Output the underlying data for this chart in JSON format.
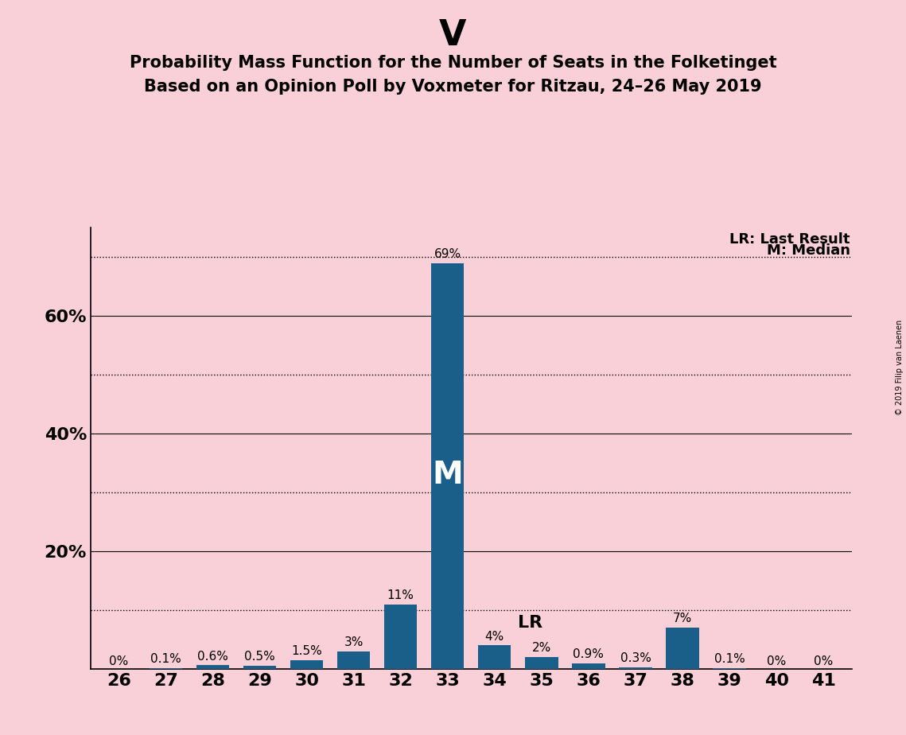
{
  "title": "V",
  "subtitle1": "Probability Mass Function for the Number of Seats in the Folketinget",
  "subtitle2": "Based on an Opinion Poll by Voxmeter for Ritzau, 24–26 May 2019",
  "copyright": "© 2019 Filip van Laenen",
  "categories": [
    26,
    27,
    28,
    29,
    30,
    31,
    32,
    33,
    34,
    35,
    36,
    37,
    38,
    39,
    40,
    41
  ],
  "values": [
    0.0,
    0.1,
    0.6,
    0.5,
    1.5,
    3.0,
    11.0,
    69.0,
    4.0,
    2.0,
    0.9,
    0.3,
    7.0,
    0.1,
    0.0,
    0.0
  ],
  "labels": [
    "0%",
    "0.1%",
    "0.6%",
    "0.5%",
    "1.5%",
    "3%",
    "11%",
    "69%",
    "4%",
    "2%",
    "0.9%",
    "0.3%",
    "7%",
    "0.1%",
    "0%",
    "0%"
  ],
  "bar_color": "#1a5f8a",
  "background_color": "#f9d0d8",
  "median_seat": 33,
  "lr_seat": 34,
  "median_label": "M",
  "lr_label": "LR",
  "legend_lr": "LR: Last Result",
  "legend_m": "M: Median",
  "ylim": [
    0,
    75
  ],
  "yticks_labeled": [
    20,
    40,
    60
  ],
  "ytick_labels": [
    "20%",
    "40%",
    "60%"
  ],
  "solid_grid": [
    20,
    40,
    60
  ],
  "dotted_grid": [
    10,
    30,
    50,
    70
  ],
  "title_fontsize": 32,
  "subtitle_fontsize": 15,
  "axis_fontsize": 16,
  "label_fontsize": 11,
  "bar_width": 0.7,
  "median_label_fontsize": 28,
  "lr_label_fontsize": 16
}
